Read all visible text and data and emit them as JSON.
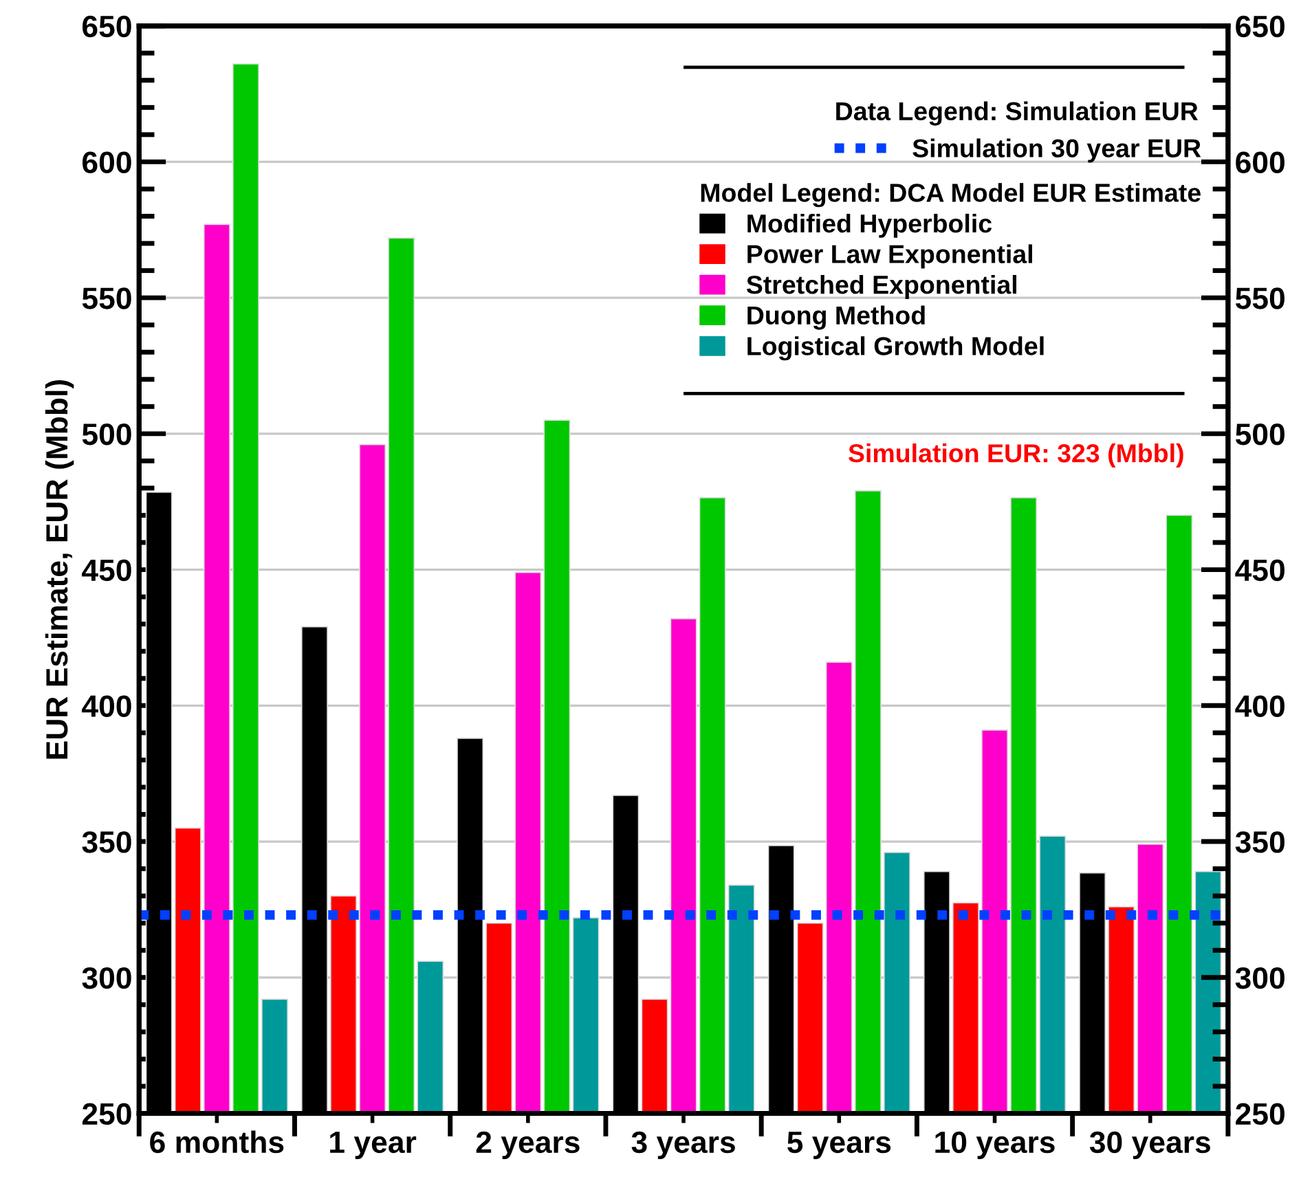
{
  "chart_data": {
    "type": "bar",
    "ylabel": "EUR Estimate, EUR (Mbbl)",
    "categories": [
      "6 months",
      "1 year",
      "2 years",
      "3 years",
      "5 years",
      "10 years",
      "30 years"
    ],
    "series": [
      {
        "name": "Modified Hyperbolic",
        "color": "#000000",
        "values": [
          478.5,
          429,
          388,
          367,
          348.5,
          339,
          338.5
        ]
      },
      {
        "name": "Power Law Exponential",
        "color": "#ff0000",
        "values": [
          355,
          330,
          320,
          292,
          320,
          327.5,
          326
        ]
      },
      {
        "name": "Stretched Exponential",
        "color": "#ff00cc",
        "values": [
          577,
          496,
          449,
          432,
          416,
          391,
          349
        ]
      },
      {
        "name": "Duong Method",
        "color": "#00c800",
        "values": [
          636,
          572,
          505,
          476.5,
          479,
          476.5,
          470
        ]
      },
      {
        "name": "Logistical Growth Model",
        "color": "#009999",
        "values": [
          292,
          306,
          322,
          334,
          346,
          352,
          339
        ]
      }
    ],
    "ylim": [
      250,
      650
    ],
    "yticks": [
      250,
      300,
      350,
      400,
      450,
      500,
      550,
      600,
      650
    ],
    "y2lim": [
      250,
      650
    ],
    "y2ticks": [
      250,
      300,
      350,
      400,
      450,
      500,
      550,
      600,
      650
    ],
    "ref_lines": [
      {
        "axis": "y",
        "value": 323,
        "label": "Simulation 30 year EUR",
        "color": "#0040ff",
        "line_style": "dotted"
      }
    ],
    "annotations": [
      "Data Legend: Simulation EUR",
      "Model Legend: DCA Model EUR Estimate",
      "Simulation EUR: 323 (Mbbl)"
    ],
    "grid": "y",
    "legend": "top right"
  }
}
